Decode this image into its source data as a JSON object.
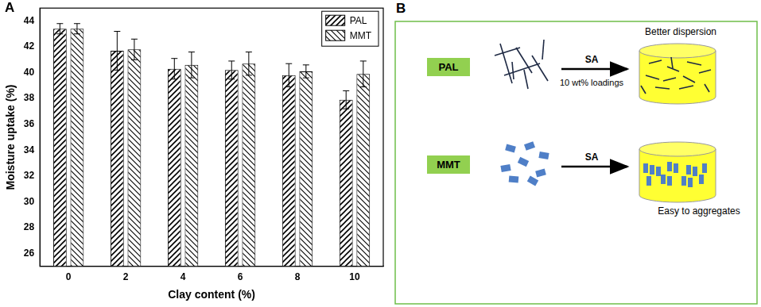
{
  "chart_data": {
    "type": "bar",
    "panel_label": "A",
    "x_label": "Clay content (%)",
    "y_label": "Moisture uptake (%)",
    "categories": [
      "0",
      "2",
      "4",
      "6",
      "8",
      "10"
    ],
    "series": [
      {
        "name": "PAL",
        "color": "#000000",
        "values": [
          43.4,
          41.7,
          40.3,
          40.2,
          39.8,
          37.9
        ],
        "errors": [
          0.4,
          1.5,
          0.8,
          0.7,
          0.9,
          0.7
        ]
      },
      {
        "name": "MMT",
        "color": "#000000",
        "values": [
          43.4,
          41.8,
          40.6,
          40.7,
          40.1,
          39.9
        ],
        "errors": [
          0.4,
          0.8,
          1.0,
          0.9,
          0.5,
          1.0
        ]
      }
    ],
    "ylim": [
      25,
      45
    ],
    "yticks": [
      26,
      28,
      30,
      32,
      34,
      36,
      38,
      40,
      42,
      44
    ],
    "grid": false,
    "legend": "upper right"
  },
  "diagram": {
    "panel_label": "B",
    "rows": [
      {
        "material": "PAL",
        "reagent": "SA",
        "note": "10 wt% loadings",
        "result": "Better dispersion"
      },
      {
        "material": "MMT",
        "reagent": "SA",
        "result": "Easy to aggregates"
      }
    ]
  }
}
